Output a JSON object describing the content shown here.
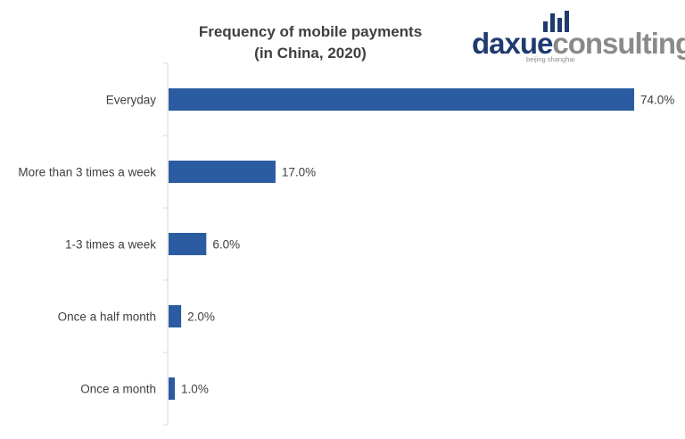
{
  "chart_data": {
    "type": "bar",
    "orientation": "horizontal",
    "title_lines": [
      "Frequency of mobile payments",
      "(in China, 2020)"
    ],
    "categories": [
      "Everyday",
      "More than 3 times a week",
      "1-3 times a week",
      "Once a half month",
      "Once a month"
    ],
    "values": [
      74.0,
      17.0,
      6.0,
      2.0,
      1.0
    ],
    "value_labels": [
      "74.0%",
      "17.0%",
      "6.0%",
      "2.0%",
      "1.0%"
    ],
    "xlim": [
      0,
      74
    ],
    "grid": false,
    "legend": "none",
    "bar_color": "#2b5ca2"
  },
  "logo": {
    "name_dark": "daxue",
    "name_light": "consulting",
    "tagline": "beijing shanghai",
    "dark_color": "#1f3b70",
    "light_color": "#8a8a8a"
  }
}
